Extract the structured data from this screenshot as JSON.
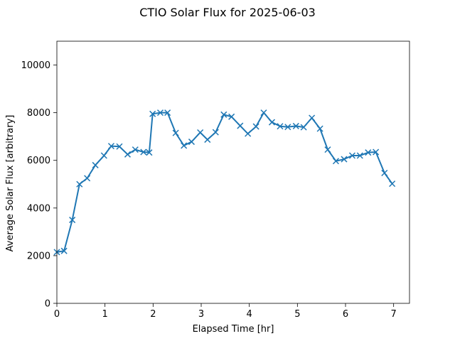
{
  "chart_data": {
    "type": "line",
    "title": "CTIO Solar Flux for 2025-06-03",
    "xlabel": "Elapsed Time [hr]",
    "ylabel": "Average Solar Flux [arbitrary]",
    "xlim": [
      0,
      7.33
    ],
    "ylim": [
      0,
      11000
    ],
    "xticks": [
      0,
      1,
      2,
      3,
      4,
      5,
      6,
      7
    ],
    "yticks": [
      0,
      2000,
      4000,
      6000,
      8000,
      10000
    ],
    "grid": false,
    "marker": "x",
    "series": [
      {
        "color": "#1f77b4",
        "x": [
          0.0,
          0.15,
          0.32,
          0.47,
          0.63,
          0.8,
          0.98,
          1.13,
          1.3,
          1.47,
          1.63,
          1.8,
          1.92,
          1.99,
          2.15,
          2.3,
          2.47,
          2.64,
          2.8,
          2.98,
          3.13,
          3.3,
          3.47,
          3.63,
          3.81,
          3.97,
          4.14,
          4.3,
          4.47,
          4.64,
          4.8,
          4.97,
          5.13,
          5.3,
          5.47,
          5.63,
          5.8,
          5.97,
          6.14,
          6.3,
          6.47,
          6.63,
          6.81,
          6.97
        ],
        "y": [
          2150,
          2200,
          3500,
          5000,
          5250,
          5800,
          6200,
          6600,
          6580,
          6250,
          6450,
          6350,
          6330,
          7950,
          8000,
          8000,
          7150,
          6620,
          6780,
          7170,
          6870,
          7180,
          7920,
          7830,
          7450,
          7120,
          7420,
          8000,
          7600,
          7430,
          7400,
          7440,
          7390,
          7780,
          7330,
          6450,
          5970,
          6050,
          6200,
          6200,
          6330,
          6350,
          5470,
          5020
        ]
      }
    ]
  }
}
